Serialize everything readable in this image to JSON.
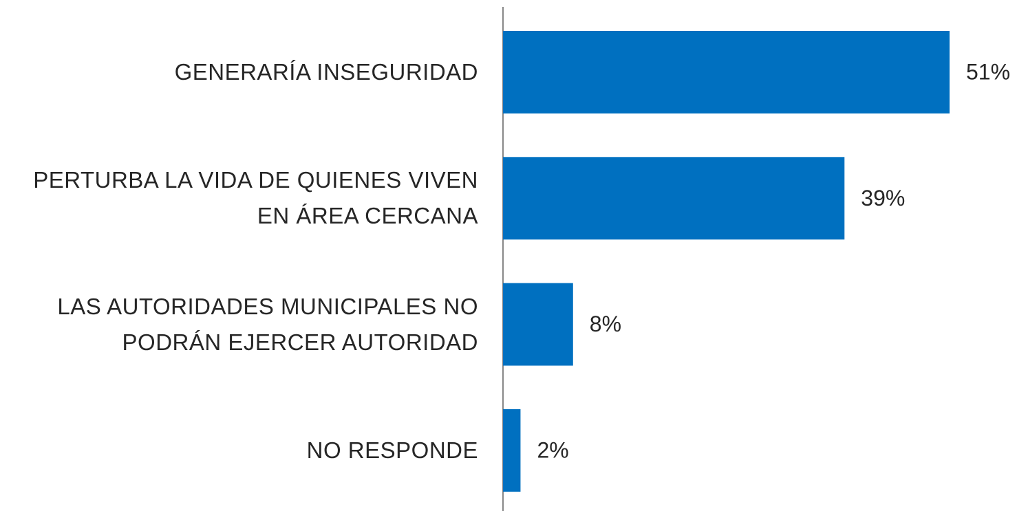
{
  "chart_data": {
    "type": "barh",
    "categories": [
      "GENERARÍA INSEGURIDAD",
      "PERTURBA LA VIDA DE QUIENES VIVEN EN ÁREA CERCANA",
      "LAS AUTORIDADES MUNICIPALES NO PODRÁN EJERCER AUTORIDAD",
      "NO RESPONDE"
    ],
    "values": [
      51,
      39,
      8,
      2
    ],
    "value_labels": [
      "51%",
      "39%",
      "8%",
      "2%"
    ],
    "color": "#0070c0"
  }
}
